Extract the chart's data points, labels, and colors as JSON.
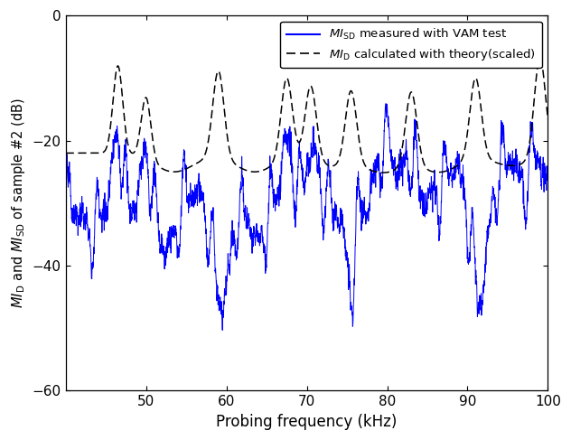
{
  "xlim": [
    40,
    100
  ],
  "ylim": [
    -60,
    0
  ],
  "xticks": [
    50,
    60,
    70,
    80,
    90,
    100
  ],
  "yticks": [
    0,
    -20,
    -40,
    -60
  ],
  "xlabel": "Probing frequency (kHz)",
  "line1_color": "#0000ff",
  "line2_color": "#000000",
  "figsize": [
    6.32,
    4.87
  ],
  "dpi": 100,
  "dashed_base": -22.0,
  "dashed_peaks": [
    46.5,
    50.0,
    59.0,
    67.5,
    70.5,
    75.5,
    83.0,
    91.0,
    99.0
  ],
  "dashed_peak_widths": [
    0.6,
    0.6,
    0.7,
    0.7,
    0.7,
    0.7,
    0.7,
    0.7,
    0.7
  ],
  "dashed_peak_amps": [
    14,
    10,
    14,
    13,
    12,
    12,
    12,
    13,
    16
  ],
  "dashed_troughs": [
    53.5,
    63.5,
    73.0,
    79.5,
    86.5,
    95.5
  ],
  "dashed_trough_amps": [
    3,
    3,
    2,
    3,
    3,
    2
  ],
  "dashed_trough_widths": [
    2.5,
    2.5,
    2.5,
    2.5,
    2.5,
    2.5
  ],
  "solid_seed": 123
}
